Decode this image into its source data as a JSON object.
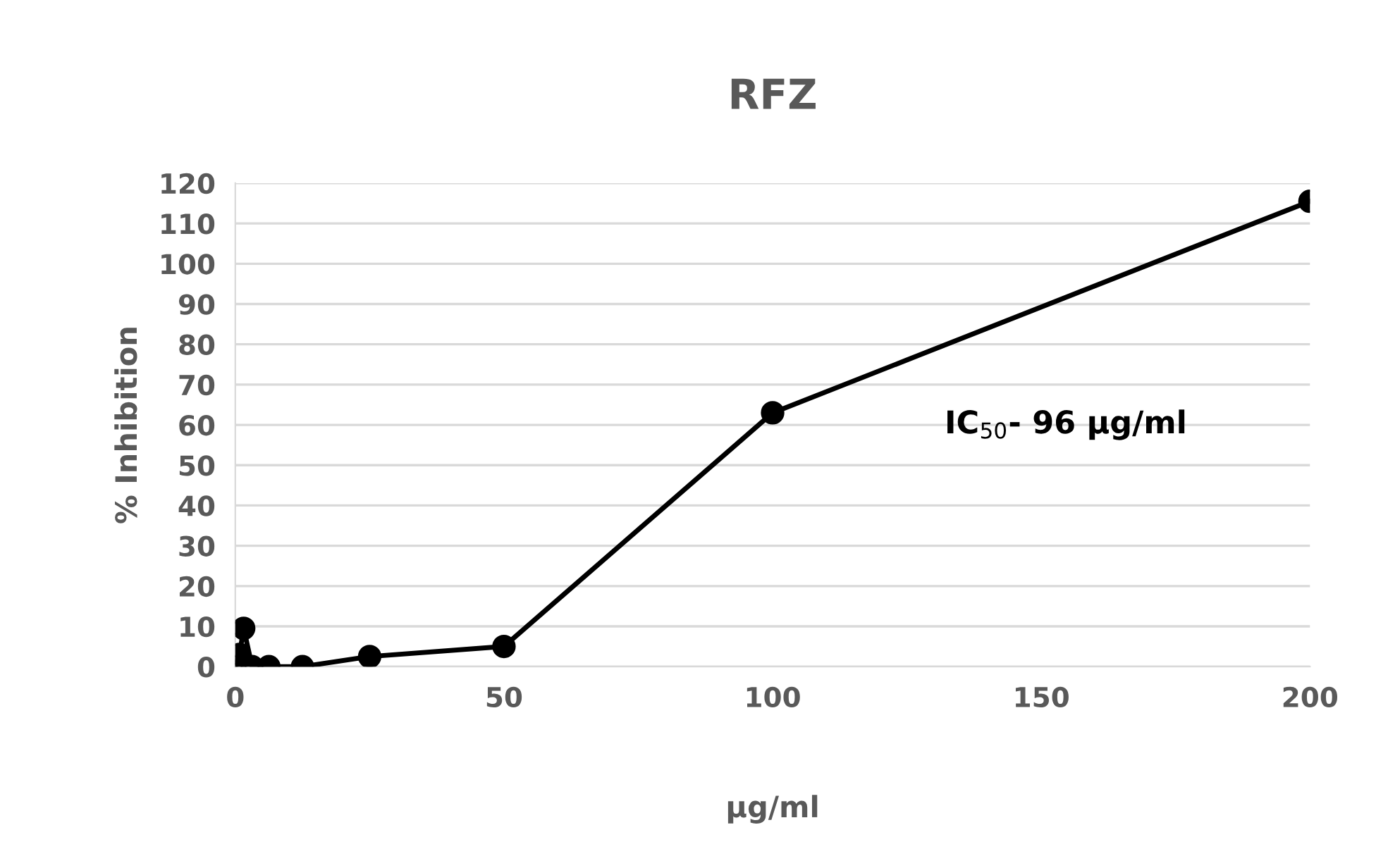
{
  "chart_data": {
    "type": "line",
    "title": "RFZ",
    "xlabel": "μg/ml",
    "ylabel": "% Inhibition",
    "x": [
      0,
      0.78,
      1.56,
      3.125,
      6.25,
      12.5,
      25,
      50,
      100,
      200
    ],
    "series": [
      {
        "color": "#000000",
        "values": [
          0,
          3,
          9.5,
          0,
          0,
          0,
          2.5,
          5,
          63,
          115.5
        ]
      }
    ],
    "xlim": [
      0,
      200
    ],
    "xticks": [
      0,
      50,
      100,
      150,
      200
    ],
    "ylim": [
      0,
      120
    ],
    "yticks": [
      0,
      10,
      20,
      30,
      40,
      50,
      60,
      70,
      80,
      90,
      100,
      110,
      120
    ],
    "grid": "y",
    "marker": "circle",
    "line_style": "solid",
    "legend": false,
    "annotations": [
      "IC$_{50}$- 96 μg/ml"
    ]
  }
}
